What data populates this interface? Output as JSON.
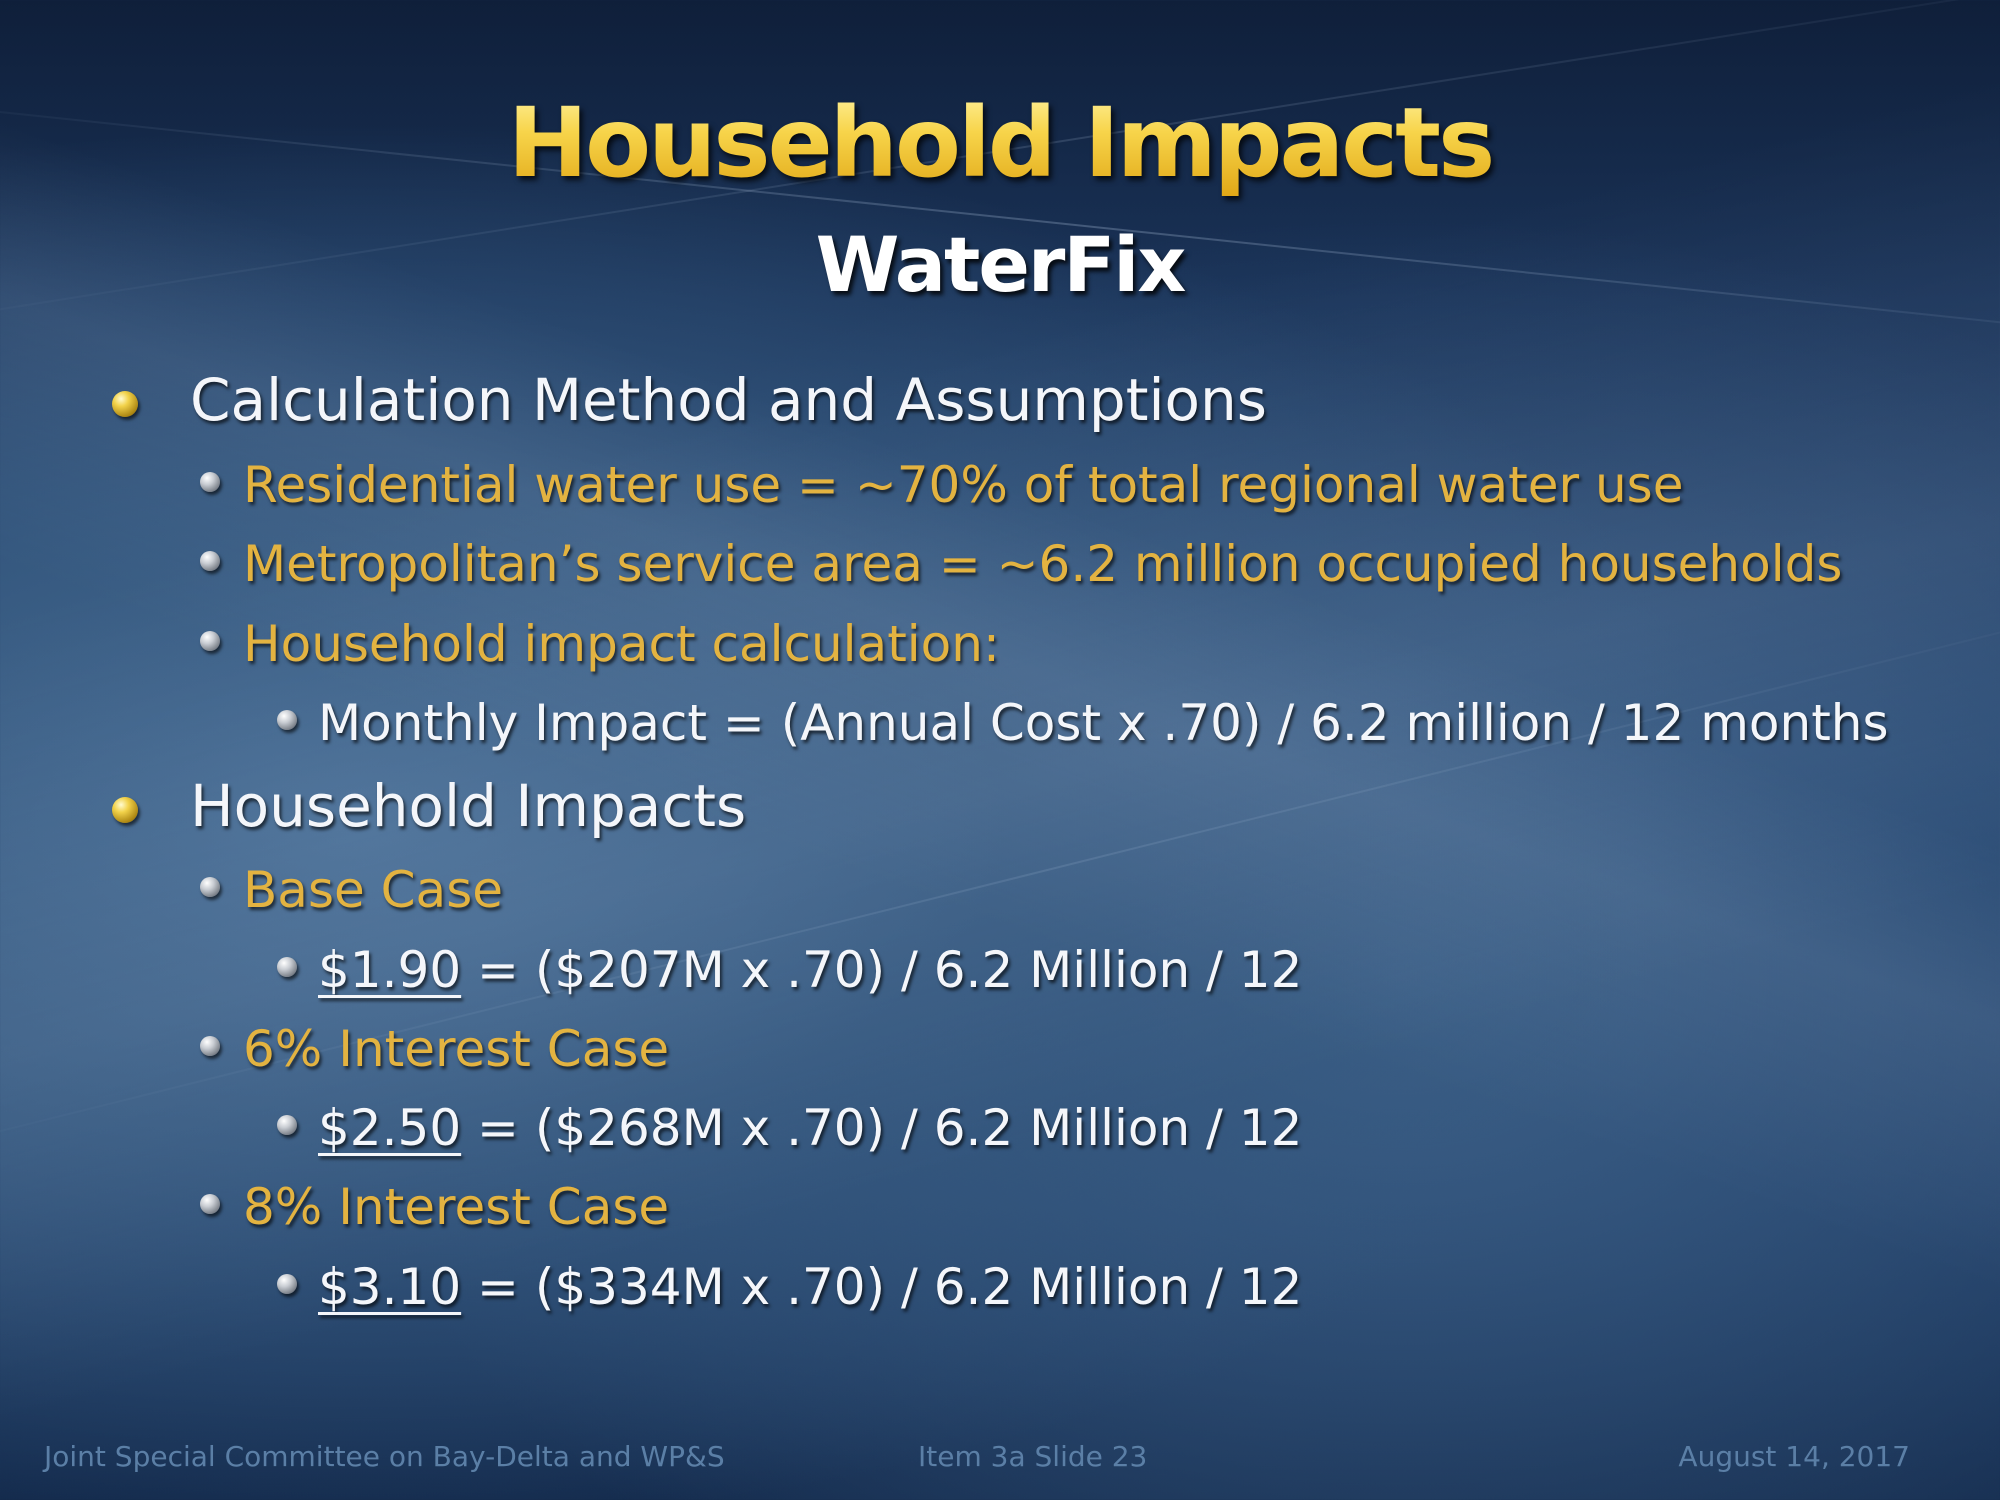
{
  "slide": {
    "title": "Household Impacts",
    "subtitle": "WaterFix"
  },
  "bullets": [
    {
      "level": 1,
      "text": "Calculation Method and Assumptions"
    },
    {
      "level": 2,
      "text": "Residential water use = ~70% of total regional water use"
    },
    {
      "level": 2,
      "text": "Metropolitan’s service area = ~6.2 million occupied households"
    },
    {
      "level": 2,
      "text": "Household impact calculation:"
    },
    {
      "level": 3,
      "text": "Monthly Impact = (Annual Cost x .70) / 6.2 million / 12 months"
    },
    {
      "level": 1,
      "text": "Household Impacts"
    },
    {
      "level": 2,
      "text": "Base Case"
    },
    {
      "level": 3,
      "amount": "$1.90",
      "rest": " = ($207M x .70) / 6.2 Million / 12"
    },
    {
      "level": 2,
      "text": "6% Interest Case"
    },
    {
      "level": 3,
      "amount": "$2.50",
      "rest": " = ($268M x .70) / 6.2 Million / 12"
    },
    {
      "level": 2,
      "text": "8% Interest Case"
    },
    {
      "level": 3,
      "amount": "$3.10",
      "rest": " = ($334M x .70) / 6.2 Million / 12"
    }
  ],
  "footer": {
    "left": "Joint Special Committee on Bay-Delta and WP&S",
    "center": "Item 3a  Slide 23",
    "right": "August 14, 2017"
  },
  "colors": {
    "title": "#f2c230",
    "level2_text": "#e3b341",
    "body_text": "#f4f6fa",
    "footer_text": "#5b7fa6",
    "background": "#24436c"
  },
  "icons": {
    "level1_bullet": "gold-sphere-bullet-icon",
    "level2_bullet": "gray-sphere-bullet-icon",
    "level3_bullet": "gray-sphere-bullet-icon"
  }
}
